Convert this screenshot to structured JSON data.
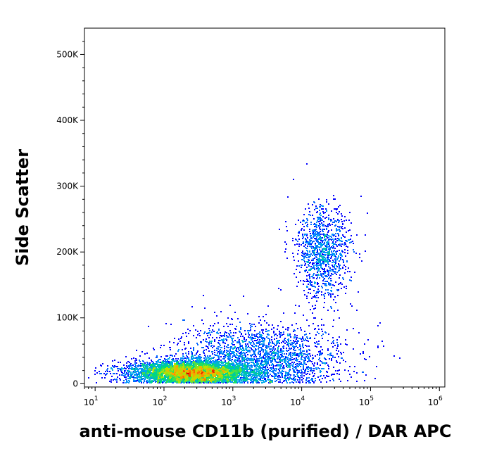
{
  "chart_data": {
    "type": "scatter",
    "title": "",
    "xlabel": "anti-mouse CD11b (purified) / DAR APC",
    "ylabel": "Side Scatter",
    "x_scale": "log",
    "xlim": [
      7,
      1200000
    ],
    "ylim": [
      -5000,
      540000
    ],
    "x_ticks": [
      {
        "value": 10,
        "base": "10",
        "exp": "1"
      },
      {
        "value": 100,
        "base": "10",
        "exp": "2"
      },
      {
        "value": 1000,
        "base": "10",
        "exp": "3"
      },
      {
        "value": 10000,
        "base": "10",
        "exp": "4"
      },
      {
        "value": 100000,
        "base": "10",
        "exp": "5"
      },
      {
        "value": 1000000,
        "base": "10",
        "exp": "6"
      }
    ],
    "y_ticks": [
      {
        "value": 0,
        "label": "0"
      },
      {
        "value": 100000,
        "label": "100K"
      },
      {
        "value": 200000,
        "label": "200K"
      },
      {
        "value": 300000,
        "label": "300K"
      },
      {
        "value": 400000,
        "label": "400K"
      },
      {
        "value": 500000,
        "label": "500K"
      }
    ],
    "color_scale": "density (blue to red)",
    "populations": [
      {
        "name": "",
        "center_x": 250,
        "center_y": 18000,
        "spread_x_log10": 0.45,
        "spread_y": 9000,
        "count": 5000
      },
      {
        "name": "",
        "center_x": 2500,
        "center_y": 40000,
        "spread_x_log10": 0.6,
        "spread_y": 25000,
        "count": 2200
      },
      {
        "name": "",
        "center_x": 20000,
        "center_y": 200000,
        "spread_x_log10": 0.2,
        "spread_y": 35000,
        "count": 1100
      }
    ]
  }
}
